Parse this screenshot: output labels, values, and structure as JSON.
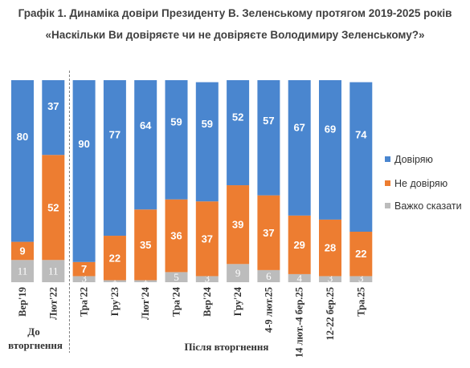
{
  "title_line1": "Графік 1. Динаміка довіри Президенту В. Зеленському протягом 2019-2025 років",
  "title_line2": "«Наскільки Ви довіряєте чи не довіряєте Володимиру Зеленському?»",
  "group_labels": {
    "before_line1": "До",
    "before_line2": "вторгнення",
    "after": "Після вторгнення"
  },
  "colors": {
    "trust": "#4a86cf",
    "distrust": "#ed7d31",
    "hard_to_say": "#bcbcbc",
    "divider": "#7f7f7f"
  },
  "chart_data": {
    "type": "bar",
    "stacked": true,
    "orientation": "vertical",
    "categories": [
      "Вер'19",
      "Лют'22",
      "Тра'22",
      "Гру'23",
      "Лют'24",
      "Тра'24",
      "Вер'24",
      "Гру'24",
      "4-9 лют.25",
      "14 лют.-4 бер.25",
      "12-22 бер.25",
      "Тра.25"
    ],
    "series": [
      {
        "name": "Важко сказати",
        "values": [
          11,
          11,
          3,
          1,
          1,
          5,
          3,
          9,
          6,
          4,
          3,
          3
        ]
      },
      {
        "name": "Не довіряю",
        "values": [
          9,
          52,
          7,
          22,
          35,
          36,
          37,
          39,
          37,
          29,
          28,
          22
        ]
      },
      {
        "name": "Довіряю",
        "values": [
          80,
          37,
          90,
          77,
          64,
          59,
          59,
          52,
          57,
          67,
          69,
          74
        ]
      }
    ],
    "ylim": [
      0,
      100
    ],
    "legend": {
      "placement": "right",
      "order": [
        "Довіряю",
        "Не довіряю",
        "Важко сказати"
      ]
    },
    "divider_after_index": 1,
    "grid": false
  }
}
